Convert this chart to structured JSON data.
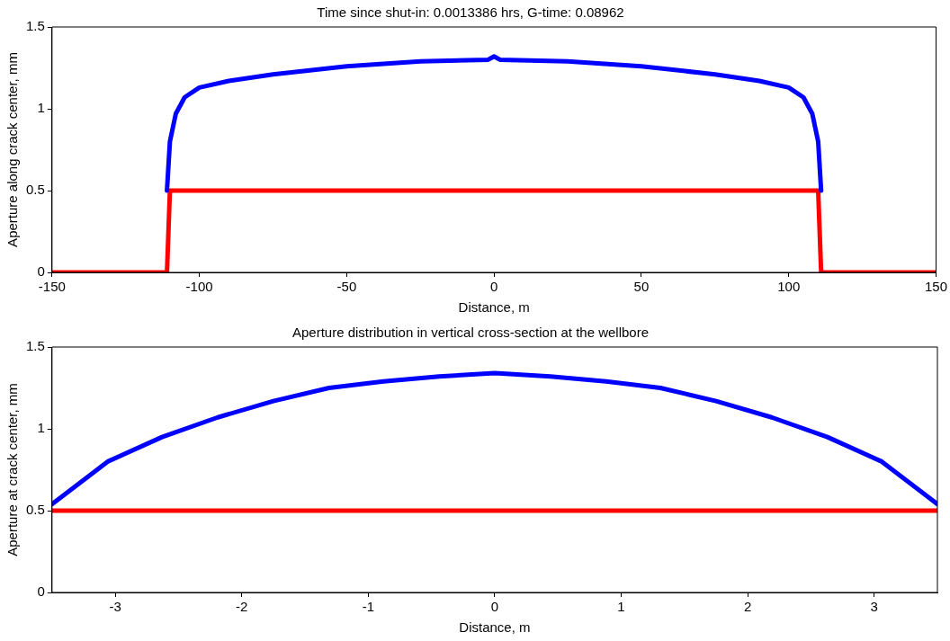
{
  "chart_data": [
    {
      "type": "line",
      "title": "Time since shut-in: 0.0013386 hrs, G-time: 0.08962",
      "xlabel": "Distance, m",
      "ylabel": "Aperture along crack center, mm",
      "xlim": [
        -150,
        150
      ],
      "xticks": [
        -150,
        -100,
        -50,
        0,
        50,
        100,
        150
      ],
      "ylim": [
        0,
        1.5
      ],
      "yticks": [
        0,
        0.5,
        1,
        1.5
      ],
      "grid": false,
      "legend": false,
      "marker": "none",
      "line_style": "solid",
      "series": [
        {
          "color": "#0000ff",
          "x": [
            -111,
            -110,
            -108,
            -105,
            -100,
            -90,
            -75,
            -50,
            -25,
            -2,
            0,
            2,
            25,
            50,
            75,
            90,
            100,
            105,
            108,
            110,
            111
          ],
          "values": [
            0.5,
            0.8,
            0.97,
            1.07,
            1.13,
            1.17,
            1.21,
            1.26,
            1.29,
            1.3,
            1.32,
            1.3,
            1.29,
            1.26,
            1.21,
            1.17,
            1.13,
            1.07,
            0.97,
            0.8,
            0.5
          ]
        },
        {
          "color": "#ff0000",
          "x": [
            -150,
            -111,
            -110,
            110,
            111,
            150
          ],
          "values": [
            0,
            0,
            0.5,
            0.5,
            0,
            0
          ]
        }
      ]
    },
    {
      "type": "line",
      "title": "Aperture distribution in vertical cross-section at the wellbore",
      "xlabel": "Distance, m",
      "ylabel": "Aperture at crack center, mm",
      "xlim": [
        -3.5,
        3.5
      ],
      "xticks": [
        -3,
        -2,
        -1,
        0,
        1,
        2,
        3
      ],
      "ylim": [
        0,
        1.5
      ],
      "yticks": [
        0,
        0.5,
        1,
        1.5
      ],
      "grid": false,
      "legend": false,
      "marker": "none",
      "line_style": "solid",
      "series": [
        {
          "color": "#0000ff",
          "x": [
            -3.5,
            -3.06,
            -2.63,
            -2.19,
            -1.75,
            -1.31,
            -0.88,
            -0.44,
            0,
            0.44,
            0.88,
            1.31,
            1.75,
            2.19,
            2.63,
            3.06,
            3.5
          ],
          "values": [
            0.54,
            0.8,
            0.95,
            1.07,
            1.17,
            1.25,
            1.29,
            1.32,
            1.34,
            1.32,
            1.29,
            1.25,
            1.17,
            1.07,
            0.95,
            0.8,
            0.54
          ]
        },
        {
          "color": "#ff0000",
          "x": [
            -3.5,
            3.5
          ],
          "values": [
            0.5,
            0.5
          ]
        }
      ]
    }
  ]
}
